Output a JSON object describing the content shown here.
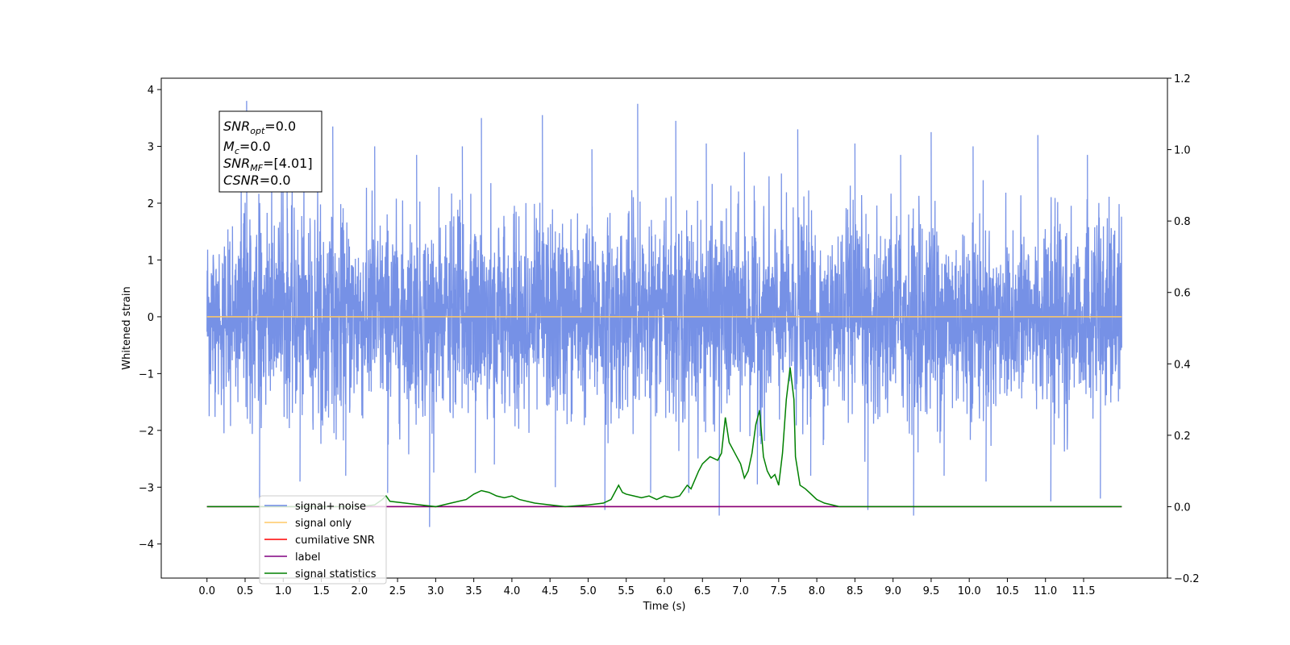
{
  "chart_data": {
    "type": "line",
    "xlabel": "Time (s)",
    "ylabel": "Whitened strain",
    "xlim": [
      -0.6,
      12.6
    ],
    "ylim": [
      -4.6,
      4.2
    ],
    "y2lim": [
      -0.2,
      1.2
    ],
    "x_ticks": [
      0.0,
      0.5,
      1.0,
      1.5,
      2.0,
      2.5,
      3.0,
      3.5,
      4.0,
      4.5,
      5.0,
      5.5,
      6.0,
      6.5,
      7.0,
      7.5,
      8.0,
      8.5,
      9.0,
      9.5,
      10.0,
      10.5,
      11.0,
      11.5
    ],
    "x_tick_labels": [
      "0.0",
      "0.5",
      "1.0",
      "1.5",
      "2.0",
      "2.5",
      "3.0",
      "3.5",
      "4.0",
      "4.5",
      "5.0",
      "5.5",
      "6.0",
      "6.5",
      "7.0",
      "7.5",
      "8.0",
      "8.5",
      "9.0",
      "9.5",
      "10.0",
      "10.5",
      "11.0",
      "11.5"
    ],
    "y_ticks": [
      4,
      3,
      2,
      1,
      0,
      -1,
      -2,
      -3,
      -4
    ],
    "y_tick_labels": [
      "4",
      "3",
      "2",
      "1",
      "0",
      "−1",
      "−2",
      "−3",
      "−4"
    ],
    "y2_ticks": [
      1.2,
      1.0,
      0.8,
      0.6,
      0.4,
      0.2,
      0.0,
      -0.2
    ],
    "y2_tick_labels": [
      "1.2",
      "1.0",
      "0.8",
      "0.6",
      "0.4",
      "0.2",
      "0.0",
      "−0.2"
    ],
    "grid": false,
    "legend_position": "bottom-left",
    "info_box": {
      "lines": [
        {
          "main": "SNR",
          "sub": "opt",
          "value": "=0.0"
        },
        {
          "main": "M",
          "sub": "c",
          "value": "=0.0"
        },
        {
          "main": "SNR",
          "sub": "MF",
          "value": "=[4.01]"
        },
        {
          "main": "CSNR",
          "sub": "",
          "value": "=0.0"
        }
      ]
    },
    "series": [
      {
        "name": "signal+ noise",
        "color": "#6f8be5",
        "axis": "left",
        "x_range": [
          0.0,
          12.0
        ],
        "envelope_upper": [
          2.2,
          3.8,
          3.0,
          3.1,
          3.0,
          2.9,
          3.2,
          3.6,
          3.0,
          3.3,
          3.0,
          3.7,
          3.5,
          3.1,
          3.4,
          3.3,
          3.1,
          3.0,
          3.0,
          3.1,
          3.2,
          3.1,
          2.8,
          3.0,
          2.6
        ],
        "envelope_lower": [
          -2.2,
          -3.3,
          -2.9,
          -2.9,
          -2.8,
          -3.2,
          -3.7,
          -2.7,
          -2.6,
          -3.0,
          -3.4,
          -3.0,
          -3.0,
          -3.5,
          -3.0,
          -3.3,
          -2.8,
          -3.4,
          -3.5,
          -2.9,
          -2.8,
          -3.0,
          -3.3,
          -3.2,
          -1.8
        ],
        "band": [
          -1.6,
          1.6
        ],
        "spike_times": [
          0.52,
          1.05,
          1.65,
          2.2,
          2.75,
          3.35,
          3.6,
          4.4,
          5.05,
          5.65,
          6.15,
          6.55,
          7.05,
          7.75,
          8.5,
          9.1,
          9.5,
          10.05,
          10.9,
          11.55
        ],
        "spike_values_up": [
          3.8,
          2.9,
          3.35,
          3.0,
          2.85,
          3.0,
          3.5,
          3.55,
          2.95,
          3.75,
          3.45,
          3.05,
          2.9,
          3.3,
          3.05,
          2.85,
          3.25,
          3.0,
          3.2,
          2.85
        ],
        "spike_values_down": [
          -3.2,
          -2.9,
          -2.8,
          -3.1,
          -3.7,
          -2.75,
          -2.6,
          -3.0,
          -3.4,
          -3.1,
          -3.1,
          -3.5,
          -2.95,
          -2.8,
          -3.4,
          -3.5,
          -2.8,
          -2.9,
          -3.25,
          -3.2
        ]
      },
      {
        "name": "signal only",
        "color": "#ffc966",
        "axis": "left",
        "x": [
          0.0,
          12.0
        ],
        "y": [
          0.0,
          0.0
        ]
      },
      {
        "name": "cumilative SNR",
        "color": "#ff0000",
        "axis": "right",
        "x": [
          0.0,
          12.0
        ],
        "y": [
          0.0,
          0.0
        ]
      },
      {
        "name": "label",
        "color": "#800080",
        "axis": "right",
        "x": [
          0.0,
          12.0
        ],
        "y": [
          0.0,
          0.0
        ]
      },
      {
        "name": "signal statistics",
        "color": "#008000",
        "axis": "right",
        "x": [
          0.0,
          0.5,
          1.0,
          1.5,
          2.0,
          2.2,
          2.3,
          2.35,
          2.4,
          2.6,
          2.8,
          3.0,
          3.2,
          3.4,
          3.5,
          3.6,
          3.7,
          3.8,
          3.9,
          4.0,
          4.1,
          4.3,
          4.5,
          4.7,
          5.0,
          5.2,
          5.3,
          5.4,
          5.45,
          5.5,
          5.6,
          5.7,
          5.8,
          5.9,
          6.0,
          6.1,
          6.2,
          6.3,
          6.35,
          6.45,
          6.5,
          6.6,
          6.7,
          6.75,
          6.8,
          6.85,
          6.9,
          6.95,
          7.0,
          7.05,
          7.1,
          7.15,
          7.2,
          7.25,
          7.3,
          7.35,
          7.4,
          7.45,
          7.5,
          7.55,
          7.6,
          7.65,
          7.7,
          7.72,
          7.78,
          7.85,
          7.9,
          8.0,
          8.1,
          8.2,
          8.3,
          8.4,
          8.5,
          9.0,
          9.5,
          10.0,
          11.0,
          12.0
        ],
        "y": [
          0.0,
          0.0,
          0.0,
          0.0,
          0.0,
          0.005,
          0.02,
          0.03,
          0.015,
          0.01,
          0.005,
          0.0,
          0.01,
          0.02,
          0.035,
          0.045,
          0.04,
          0.03,
          0.025,
          0.03,
          0.02,
          0.01,
          0.005,
          0.0,
          0.005,
          0.01,
          0.02,
          0.06,
          0.04,
          0.035,
          0.03,
          0.025,
          0.03,
          0.02,
          0.03,
          0.025,
          0.03,
          0.06,
          0.05,
          0.1,
          0.12,
          0.14,
          0.13,
          0.15,
          0.25,
          0.18,
          0.16,
          0.14,
          0.12,
          0.08,
          0.1,
          0.15,
          0.23,
          0.27,
          0.14,
          0.1,
          0.08,
          0.09,
          0.06,
          0.15,
          0.3,
          0.39,
          0.3,
          0.14,
          0.06,
          0.05,
          0.04,
          0.02,
          0.01,
          0.005,
          0.0,
          0.0,
          0.0,
          0.0,
          0.0,
          0.0,
          0.0,
          0.0
        ]
      }
    ]
  }
}
